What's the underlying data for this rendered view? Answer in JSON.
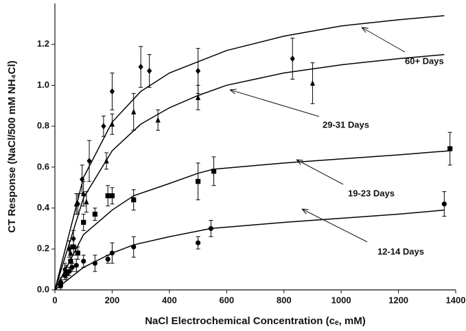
{
  "chart_data": {
    "type": "scatter",
    "xlabel": "NaCl Electrochemical Concentration (cₑ, mM)",
    "ylabel": "CT Response (NaCl/500 mM NH₄Cl)",
    "xlim": [
      0,
      1400
    ],
    "ylim": [
      0,
      1.4
    ],
    "xticks": [
      0,
      200,
      400,
      600,
      800,
      1000,
      1200,
      1400
    ],
    "yticks": [
      {
        "value": 0,
        "label": "0.0"
      },
      0.2,
      0.4,
      0.6,
      0.8,
      {
        "value": 1,
        "label": "1.0"
      },
      1.2
    ],
    "series": [
      {
        "name": "60+ Days",
        "marker": "diamond",
        "color": "#000000",
        "x": [
          20,
          35,
          50,
          65,
          80,
          95,
          120,
          170,
          200,
          300,
          330,
          500,
          830
        ],
        "values": [
          0.04,
          0.1,
          0.2,
          0.25,
          0.42,
          0.54,
          0.63,
          0.8,
          0.97,
          1.09,
          1.07,
          1.07,
          1.13
        ],
        "errors": [
          0.02,
          0.03,
          0.04,
          0.04,
          0.05,
          0.07,
          0.1,
          0.05,
          0.09,
          0.1,
          0.08,
          0.11,
          0.1
        ],
        "fit_x": [
          0,
          100,
          200,
          300,
          400,
          600,
          800,
          1000,
          1200,
          1360
        ],
        "fit_y": [
          0,
          0.55,
          0.82,
          0.97,
          1.06,
          1.17,
          1.24,
          1.29,
          1.32,
          1.34
        ]
      },
      {
        "name": "29-31 Days",
        "marker": "triangle",
        "color": "#000000",
        "x": [
          20,
          40,
          55,
          75,
          100,
          110,
          180,
          200,
          275,
          360,
          500,
          900
        ],
        "values": [
          0.03,
          0.09,
          0.18,
          0.42,
          0.47,
          0.43,
          0.63,
          0.81,
          0.87,
          0.83,
          0.94,
          1.01
        ],
        "errors": [
          0.02,
          0.03,
          0.04,
          0.05,
          0.06,
          0.05,
          0.04,
          0.05,
          0.09,
          0.05,
          0.06,
          0.1
        ],
        "fit_x": [
          0,
          100,
          200,
          300,
          400,
          500,
          600,
          800,
          1000,
          1200,
          1360
        ],
        "fit_y": [
          0,
          0.45,
          0.68,
          0.81,
          0.89,
          0.95,
          1.0,
          1.06,
          1.1,
          1.13,
          1.15
        ]
      },
      {
        "name": "19-23 Days",
        "marker": "square",
        "color": "#000000",
        "x": [
          20,
          40,
          55,
          65,
          80,
          100,
          140,
          185,
          200,
          275,
          500,
          555,
          1380
        ],
        "values": [
          0.03,
          0.08,
          0.14,
          0.21,
          0.18,
          0.33,
          0.37,
          0.46,
          0.46,
          0.44,
          0.53,
          0.58,
          0.69
        ],
        "errors": [
          0.02,
          0.03,
          0.03,
          0.04,
          0.03,
          0.04,
          0.03,
          0.05,
          0.04,
          0.05,
          0.09,
          0.07,
          0.08
        ],
        "fit_x": [
          0,
          100,
          200,
          275,
          400,
          500,
          555,
          800,
          1000,
          1200,
          1380
        ],
        "fit_y": [
          0,
          0.27,
          0.39,
          0.46,
          0.52,
          0.57,
          0.59,
          0.62,
          0.64,
          0.66,
          0.68
        ]
      },
      {
        "name": "12-14 Days",
        "marker": "circle",
        "color": "#000000",
        "x": [
          20,
          35,
          50,
          60,
          75,
          100,
          140,
          185,
          200,
          275,
          500,
          545,
          1360
        ],
        "values": [
          0.02,
          0.07,
          0.09,
          0.11,
          0.12,
          0.14,
          0.13,
          0.15,
          0.18,
          0.21,
          0.23,
          0.3,
          0.42
        ],
        "errors": [
          0.02,
          0.02,
          0.02,
          0.02,
          0.03,
          0.03,
          0.04,
          0.02,
          0.05,
          0.05,
          0.03,
          0.04,
          0.06
        ],
        "fit_x": [
          0,
          100,
          200,
          275,
          400,
          545,
          800,
          1000,
          1200,
          1360
        ],
        "fit_y": [
          0,
          0.11,
          0.18,
          0.22,
          0.26,
          0.3,
          0.33,
          0.35,
          0.37,
          0.39
        ]
      }
    ]
  }
}
